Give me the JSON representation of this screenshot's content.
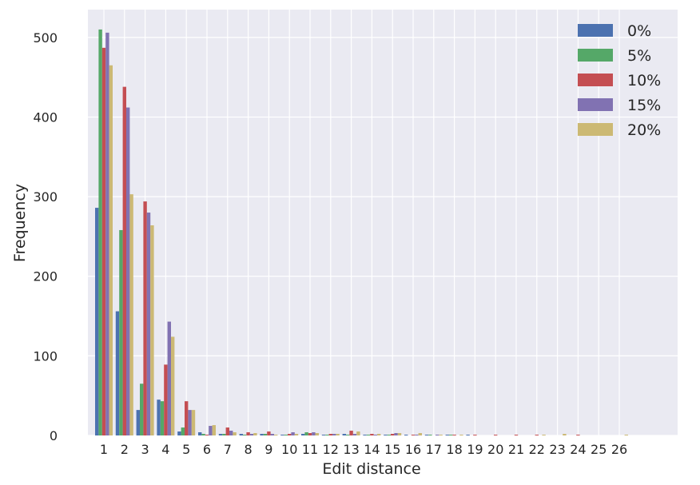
{
  "chart_data": {
    "type": "bar",
    "title": "",
    "xlabel": "Edit distance",
    "ylabel": "Frequency",
    "ylim": [
      0,
      535
    ],
    "yticks": [
      0,
      100,
      200,
      300,
      400,
      500
    ],
    "grid": true,
    "legend_position": "top-right",
    "background": "#EAEAF2",
    "categories": [
      "1",
      "2",
      "3",
      "4",
      "5",
      "6",
      "7",
      "8",
      "9",
      "10",
      "11",
      "12",
      "13",
      "14",
      "15",
      "16",
      "17",
      "18",
      "19",
      "20",
      "21",
      "22",
      "23",
      "24",
      "25",
      "26"
    ],
    "series": [
      {
        "name": "0%",
        "color": "#4C72B0",
        "values": [
          286,
          156,
          32,
          45,
          5,
          4,
          2,
          2,
          2,
          1,
          2,
          1,
          2,
          1,
          1,
          1,
          1,
          1,
          1,
          0,
          0,
          0,
          0,
          0,
          0,
          0
        ]
      },
      {
        "name": "5%",
        "color": "#55A868",
        "values": [
          510,
          258,
          65,
          43,
          10,
          2,
          2,
          1,
          2,
          1,
          4,
          1,
          1,
          1,
          1,
          0,
          1,
          1,
          0,
          0,
          0,
          0,
          0,
          0,
          0,
          0
        ]
      },
      {
        "name": "10%",
        "color": "#C44E52",
        "values": [
          487,
          438,
          294,
          89,
          43,
          1,
          10,
          4,
          5,
          2,
          3,
          2,
          6,
          2,
          2,
          1,
          0,
          1,
          1,
          1,
          1,
          1,
          0,
          1,
          0,
          0
        ]
      },
      {
        "name": "15%",
        "color": "#8172B2",
        "values": [
          506,
          412,
          280,
          143,
          32,
          12,
          6,
          2,
          2,
          4,
          4,
          2,
          2,
          1,
          3,
          1,
          1,
          0,
          0,
          0,
          0,
          0,
          0,
          0,
          0,
          0
        ]
      },
      {
        "name": "20%",
        "color": "#CCB974",
        "values": [
          465,
          303,
          264,
          124,
          32,
          13,
          4,
          3,
          1,
          2,
          3,
          2,
          5,
          2,
          3,
          3,
          1,
          1,
          0,
          0,
          0,
          1,
          2,
          0,
          0,
          1
        ]
      }
    ]
  }
}
